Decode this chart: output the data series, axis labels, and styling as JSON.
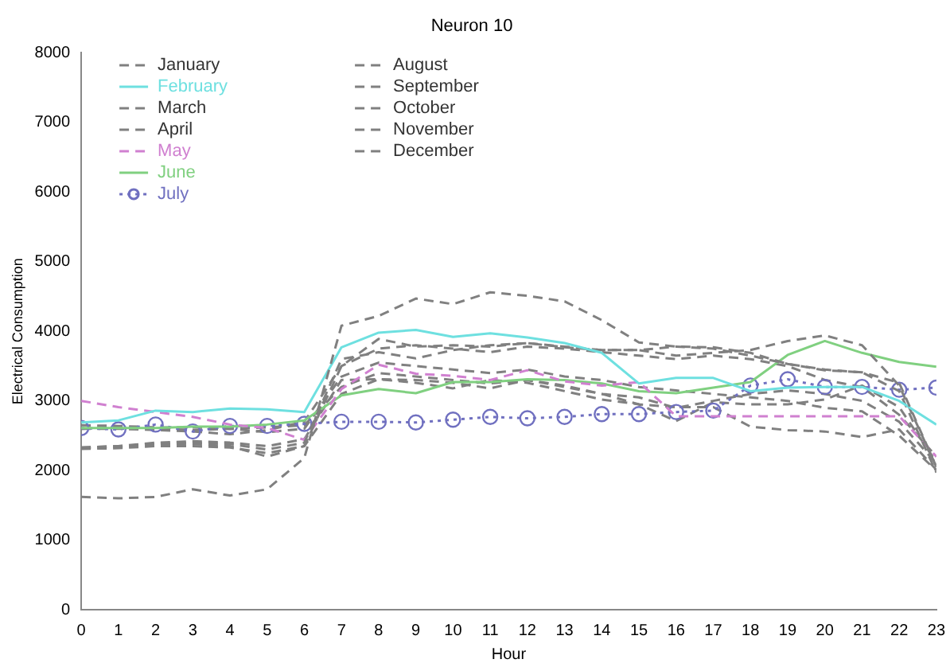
{
  "chart_data": {
    "type": "line",
    "title": "Neuron 10",
    "xlabel": "Hour",
    "ylabel": "Electrical Consumption",
    "x": [
      0,
      1,
      2,
      3,
      4,
      5,
      6,
      7,
      8,
      9,
      10,
      11,
      12,
      13,
      14,
      15,
      16,
      17,
      18,
      19,
      20,
      21,
      22,
      23
    ],
    "xlim": [
      0,
      23
    ],
    "xticks": [
      0,
      1,
      2,
      3,
      4,
      5,
      6,
      7,
      8,
      9,
      10,
      11,
      12,
      13,
      14,
      15,
      16,
      17,
      18,
      19,
      20,
      21,
      22,
      23
    ],
    "ylim": [
      0,
      8000
    ],
    "yticks": [
      0,
      1000,
      2000,
      3000,
      4000,
      5000,
      6000,
      7000,
      8000
    ],
    "grid": false,
    "legend": "top left",
    "marker": "none",
    "line_style": "dashed",
    "series": [
      {
        "name": "January",
        "color": "#808080",
        "values": [
          1620,
          1600,
          1620,
          1730,
          1640,
          1730,
          2180,
          4080,
          4220,
          4470,
          4390,
          4560,
          4510,
          4430,
          4160,
          3840,
          3780,
          3770,
          3690,
          3530,
          3450,
          3410,
          3260,
          2050
        ]
      },
      {
        "name": "February",
        "color": "#6ee0e0",
        "line_style": "solid",
        "values": [
          2690,
          2720,
          2860,
          2840,
          2890,
          2880,
          2840,
          3770,
          3980,
          4020,
          3920,
          3970,
          3910,
          3830,
          3690,
          3250,
          3330,
          3330,
          3140,
          3190,
          3200,
          3200,
          3000,
          2660
        ]
      },
      {
        "name": "March",
        "color": "#808080",
        "values": [
          2310,
          2320,
          2350,
          2350,
          2330,
          2250,
          2350,
          3500,
          3890,
          3780,
          3800,
          3780,
          3830,
          3780,
          3730,
          3730,
          3650,
          3690,
          3730,
          3860,
          3940,
          3800,
          3220,
          2050
        ]
      },
      {
        "name": "April",
        "color": "#808080",
        "values": [
          2330,
          2350,
          2380,
          2400,
          2380,
          2300,
          2400,
          3600,
          3700,
          3610,
          3730,
          3800,
          3830,
          3770,
          3730,
          3730,
          3780,
          3750,
          3650,
          3530,
          3440,
          3410,
          3140,
          1970
        ]
      },
      {
        "name": "May",
        "color": "#d080d0",
        "values": [
          3000,
          2910,
          2840,
          2770,
          2660,
          2610,
          2440,
          3170,
          3520,
          3390,
          3360,
          3300,
          3440,
          3280,
          3220,
          3270,
          2780,
          2780,
          2780,
          2780,
          2780,
          2780,
          2780,
          2200
        ]
      },
      {
        "name": "June",
        "color": "#80d080",
        "line_style": "solid",
        "values": [
          2610,
          2610,
          2610,
          2630,
          2630,
          2660,
          2720,
          3080,
          3170,
          3110,
          3270,
          3270,
          3310,
          3300,
          3250,
          3140,
          3110,
          3190,
          3270,
          3660,
          3860,
          3690,
          3560,
          3490
        ]
      },
      {
        "name": "July",
        "color": "#7070c0",
        "line_style": "dotted",
        "marker": "circle",
        "values": [
          2610,
          2590,
          2660,
          2560,
          2640,
          2640,
          2670,
          2700,
          2700,
          2690,
          2730,
          2770,
          2750,
          2770,
          2810,
          2810,
          2840,
          2860,
          3220,
          3310,
          3200,
          3200,
          3160,
          3190
        ]
      },
      {
        "name": "August",
        "color": "#808080",
        "values": [
          2330,
          2350,
          2400,
          2420,
          2400,
          2350,
          2450,
          3300,
          3310,
          3300,
          3260,
          3180,
          3300,
          3220,
          3100,
          2950,
          2710,
          2980,
          2950,
          2950,
          3020,
          3220,
          2910,
          2120
        ]
      },
      {
        "name": "September",
        "color": "#808080",
        "values": [
          2320,
          2340,
          2380,
          2380,
          2350,
          2200,
          2350,
          3100,
          3310,
          3260,
          3180,
          3300,
          3260,
          3140,
          3020,
          2950,
          2910,
          2910,
          2630,
          2580,
          2560,
          2480,
          2590,
          2010
        ]
      },
      {
        "name": "October",
        "color": "#808080",
        "values": [
          2600,
          2600,
          2580,
          2560,
          2520,
          2580,
          2700,
          3500,
          3750,
          3800,
          3750,
          3700,
          3780,
          3750,
          3700,
          3650,
          3600,
          3650,
          3600,
          3500,
          3300,
          3200,
          2800,
          2200
        ]
      },
      {
        "name": "November",
        "color": "#808080",
        "values": [
          2650,
          2640,
          2620,
          2620,
          2600,
          2620,
          2650,
          3200,
          3400,
          3350,
          3300,
          3250,
          3300,
          3200,
          3100,
          3050,
          2900,
          3000,
          3100,
          3150,
          3100,
          3000,
          2700,
          2100
        ]
      },
      {
        "name": "December",
        "color": "#808080",
        "values": [
          2600,
          2620,
          2600,
          2580,
          2600,
          2550,
          2600,
          3350,
          3550,
          3500,
          3450,
          3400,
          3450,
          3350,
          3300,
          3200,
          3150,
          3100,
          3050,
          3000,
          2900,
          2850,
          2500,
          2000
        ]
      }
    ]
  }
}
